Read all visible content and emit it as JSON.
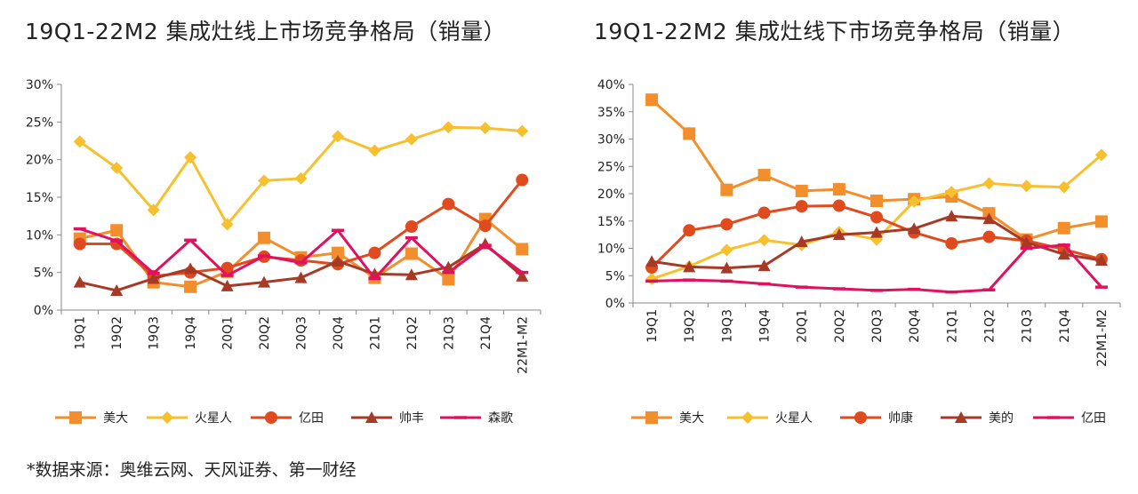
{
  "source_note": "*数据来源：奥维云网、天风证券、第一财经",
  "chart_data": [
    {
      "type": "line",
      "title": "19Q1-22M2 集成灶线上市场竞争格局（销量）",
      "categories": [
        "19Q1",
        "19Q2",
        "19Q3",
        "19Q4",
        "20Q1",
        "20Q2",
        "20Q3",
        "20Q4",
        "21Q1",
        "21Q2",
        "21Q3",
        "21Q4",
        "22M1-M2"
      ],
      "ylim": [
        0,
        30
      ],
      "yticks": [
        "0%",
        "5%",
        "10%",
        "15%",
        "20%",
        "25%",
        "30%"
      ],
      "grid": false,
      "legend": "bottom",
      "series": [
        {
          "name": "美大",
          "color": "#f28e2b",
          "marker": "square",
          "values": [
            9.5,
            10.6,
            3.7,
            3.1,
            5.1,
            9.6,
            7.0,
            7.6,
            4.3,
            7.5,
            4.1,
            12.1,
            8.1
          ]
        },
        {
          "name": "火星人",
          "color": "#f6c02f",
          "marker": "diamond",
          "values": [
            22.4,
            18.9,
            13.3,
            20.3,
            11.4,
            17.2,
            17.5,
            23.1,
            21.2,
            22.7,
            24.3,
            24.2,
            23.8
          ]
        },
        {
          "name": "亿田",
          "color": "#df4a1f",
          "marker": "circle",
          "values": [
            8.8,
            8.8,
            4.5,
            5.0,
            5.6,
            7.1,
            6.6,
            6.1,
            7.6,
            11.1,
            14.1,
            11.2,
            17.3
          ]
        },
        {
          "name": "帅丰",
          "color": "#a63a26",
          "marker": "triangle",
          "values": [
            3.7,
            2.6,
            4.2,
            5.5,
            3.2,
            3.7,
            4.3,
            6.5,
            4.8,
            4.7,
            5.7,
            8.8,
            4.5
          ]
        },
        {
          "name": "森歌",
          "color": "#e0115f",
          "marker": "dash",
          "values": [
            10.8,
            9.2,
            4.9,
            9.3,
            4.6,
            7.2,
            6.3,
            10.6,
            4.2,
            9.6,
            5.0,
            8.6,
            5.0
          ]
        }
      ]
    },
    {
      "type": "line",
      "title": "19Q1-22M2 集成灶线下市场竞争格局（销量）",
      "categories": [
        "19Q1",
        "19Q2",
        "19Q3",
        "19Q4",
        "20Q1",
        "20Q2",
        "20Q3",
        "20Q4",
        "21Q1",
        "21Q2",
        "21Q3",
        "21Q4",
        "22M1-M2"
      ],
      "ylim": [
        0,
        40
      ],
      "yticks": [
        "0%",
        "5%",
        "10%",
        "15%",
        "20%",
        "25%",
        "30%",
        "35%",
        "40%"
      ],
      "grid": false,
      "legend": "bottom",
      "series": [
        {
          "name": "美大",
          "color": "#f28e2b",
          "marker": "square",
          "values": [
            37.2,
            31.0,
            20.7,
            23.4,
            20.5,
            20.8,
            18.7,
            19.0,
            19.5,
            16.4,
            11.6,
            13.7,
            14.9
          ]
        },
        {
          "name": "火星人",
          "color": "#f6c02f",
          "marker": "diamond",
          "values": [
            4.4,
            6.7,
            9.7,
            11.5,
            10.6,
            13.0,
            11.6,
            18.6,
            20.3,
            21.9,
            21.4,
            21.2,
            27.1
          ]
        },
        {
          "name": "帅康",
          "color": "#df4a1f",
          "marker": "circle",
          "values": [
            6.5,
            13.3,
            14.4,
            16.5,
            17.7,
            17.8,
            15.7,
            12.9,
            10.9,
            12.1,
            11.4,
            9.8,
            8.0
          ]
        },
        {
          "name": "美的",
          "color": "#a63a26",
          "marker": "triangle",
          "values": [
            7.6,
            6.6,
            6.4,
            6.8,
            11.2,
            12.5,
            12.9,
            13.6,
            15.9,
            15.4,
            11.1,
            8.9,
            7.8
          ]
        },
        {
          "name": "亿田",
          "color": "#e0115f",
          "marker": "dash",
          "values": [
            4.0,
            4.2,
            4.0,
            3.5,
            2.9,
            2.6,
            2.3,
            2.5,
            2.0,
            2.4,
            10.0,
            10.6,
            2.9
          ]
        }
      ]
    }
  ]
}
